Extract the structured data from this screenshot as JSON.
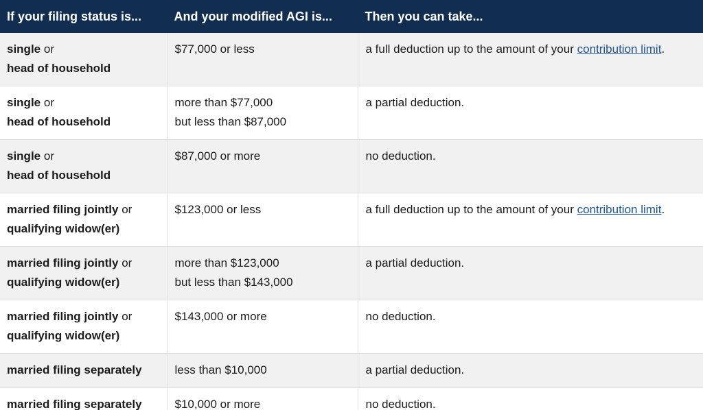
{
  "header": {
    "col1": "If your filing status is...",
    "col2": "And your modified AGI is...",
    "col3": "Then you can take..."
  },
  "rows": [
    {
      "status_bold_1": "single",
      "status_conj": "or",
      "status_bold_2": "head of household",
      "agi_line1": "$77,000 or less",
      "agi_line2": "",
      "deduction_text": "a full deduction up to the amount of your",
      "deduction_link": "contribution limit",
      "deduction_end": "."
    },
    {
      "status_bold_1": "single",
      "status_conj": "or",
      "status_bold_2": "head of household",
      "agi_line1": "more than $77,000",
      "agi_line2": "but less than $87,000",
      "deduction_text": "a partial deduction.",
      "deduction_link": "",
      "deduction_end": ""
    },
    {
      "status_bold_1": "single",
      "status_conj": "or",
      "status_bold_2": "head of household",
      "agi_line1": "$87,000 or more",
      "agi_line2": "",
      "deduction_text": "no deduction.",
      "deduction_link": "",
      "deduction_end": ""
    },
    {
      "status_bold_1": "married filing jointly",
      "status_conj": "or",
      "status_bold_2": "qualifying widow(er)",
      "agi_line1": "$123,000 or less",
      "agi_line2": "",
      "deduction_text": "a full deduction up to the amount of your",
      "deduction_link": "contribution limit",
      "deduction_end": "."
    },
    {
      "status_bold_1": "married filing jointly",
      "status_conj": "or",
      "status_bold_2": "qualifying widow(er)",
      "agi_line1": "more than $123,000",
      "agi_line2": "but less than $143,000",
      "deduction_text": "a partial deduction.",
      "deduction_link": "",
      "deduction_end": ""
    },
    {
      "status_bold_1": "married filing jointly",
      "status_conj": "or",
      "status_bold_2": "qualifying widow(er)",
      "agi_line1": "$143,000 or more",
      "agi_line2": "",
      "deduction_text": "no deduction.",
      "deduction_link": "",
      "deduction_end": ""
    },
    {
      "status_bold_1": "married filing separately",
      "status_conj": "",
      "status_bold_2": "",
      "agi_line1": "less than $10,000",
      "agi_line2": "",
      "deduction_text": "a partial deduction.",
      "deduction_link": "",
      "deduction_end": ""
    },
    {
      "status_bold_1": "married filing separately",
      "status_conj": "",
      "status_bold_2": "",
      "agi_line1": "$10,000 or more",
      "agi_line2": "",
      "deduction_text": "no deduction.",
      "deduction_link": "",
      "deduction_end": ""
    }
  ],
  "colors": {
    "header_bg": "#112e51",
    "header_text": "#ffffff",
    "row_shade": "#f1f1f1",
    "link": "#205493"
  }
}
